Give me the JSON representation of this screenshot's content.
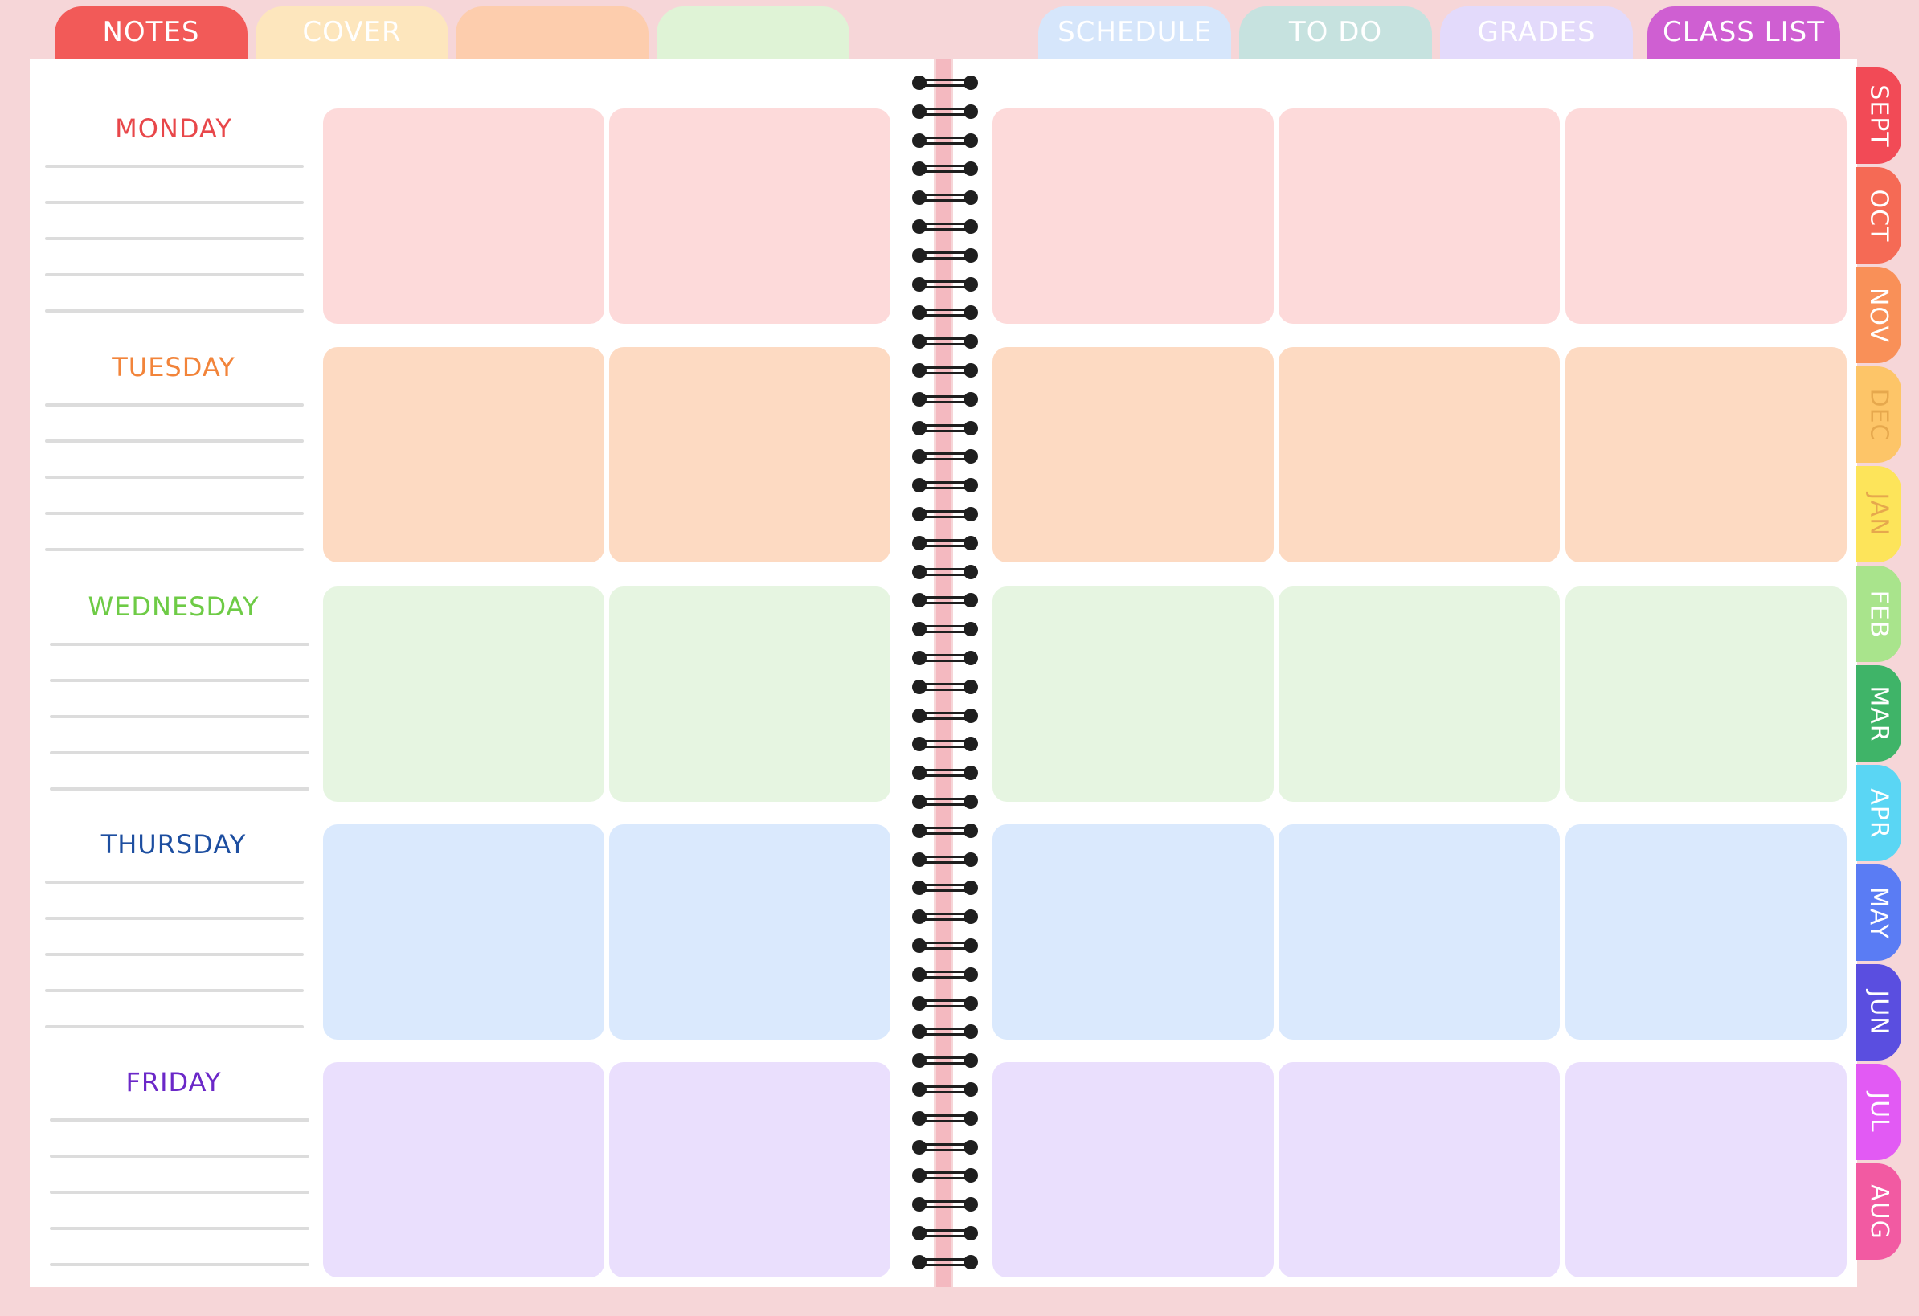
{
  "top_tabs_left": [
    {
      "label": "NOTES",
      "color": "#f25a58",
      "text_color": "#ffffff"
    },
    {
      "label": "COVER",
      "color": "#fde6bd",
      "text_color": "#ffffff"
    },
    {
      "label": "",
      "color": "#fdcdad",
      "text_color": "#ffffff"
    },
    {
      "label": "",
      "color": "#dff3d6",
      "text_color": "#ffffff"
    }
  ],
  "top_tabs_right": [
    {
      "label": "SCHEDULE",
      "color": "#d6e6fb",
      "text_color": "#ffffff"
    },
    {
      "label": "TO DO",
      "color": "#c6e2df",
      "text_color": "#ffffff"
    },
    {
      "label": "GRADES",
      "color": "#e3dafb",
      "text_color": "#ffffff"
    },
    {
      "label": "CLASS LIST",
      "color": "#cf5fd2",
      "text_color": "#ffffff"
    }
  ],
  "days": [
    {
      "label": "MONDAY",
      "color": "#e8474a",
      "box_color": "#fddada"
    },
    {
      "label": "TUESDAY",
      "color": "#f2843a",
      "box_color": "#fddac2"
    },
    {
      "label": "WEDNESDAY",
      "color": "#6ecb46",
      "box_color": "#e6f5e1"
    },
    {
      "label": "THURSDAY",
      "color": "#1d4ea0",
      "box_color": "#dae9fd"
    },
    {
      "label": "FRIDAY",
      "color": "#6b28c8",
      "box_color": "#eadffd"
    }
  ],
  "months": [
    {
      "label": "SEPT",
      "color": "#f24a56"
    },
    {
      "label": "OCT",
      "color": "#f56a55"
    },
    {
      "label": "NOV",
      "color": "#f99058"
    },
    {
      "label": "DEC",
      "color": "#fdc568"
    },
    {
      "label": "JAN",
      "color": "#fde45a"
    },
    {
      "label": "FEB",
      "color": "#a9e48c"
    },
    {
      "label": "MAR",
      "color": "#3fb468"
    },
    {
      "label": "APR",
      "color": "#5ad6f4"
    },
    {
      "label": "MAY",
      "color": "#5a7cf4"
    },
    {
      "label": "JUN",
      "color": "#5a4ee0"
    },
    {
      "label": "JUL",
      "color": "#e25af4"
    },
    {
      "label": "AUG",
      "color": "#f25aa2"
    }
  ]
}
